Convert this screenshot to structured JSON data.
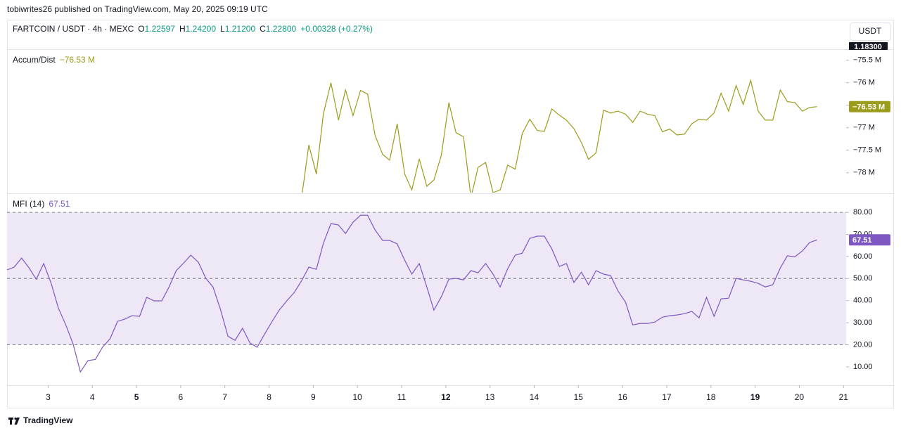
{
  "header": {
    "published": "tobiwrites26 published on TradingView.com, May 20, 2025 09:19 UTC",
    "symbol": "FARTCOIN / USDT · 4h · MEXC",
    "ohlc": [
      {
        "key": "O",
        "value": "1.22597"
      },
      {
        "key": "H",
        "value": "1.24200"
      },
      {
        "key": "L",
        "value": "1.21200"
      },
      {
        "key": "C",
        "value": "1.22800"
      }
    ],
    "change": "+0.00328 (+0.27%)",
    "currency": "USDT",
    "price_label": "1.18300"
  },
  "chart_data": [
    {
      "type": "line",
      "title": "Accum/Dist",
      "color": "#9c9c1c",
      "last_value": {
        "value": -76.53,
        "label": "−76.53 M"
      },
      "xlim": [
        2.07,
        21.06
      ],
      "ylim": [
        -78.44,
        -75.27
      ],
      "yticks": [
        {
          "value": -75.5,
          "label": "−75.5 M"
        },
        {
          "value": -76,
          "label": "−76 M"
        },
        {
          "value": -76.5,
          "label": "−76.5 M"
        },
        {
          "value": -77,
          "label": "−77 M"
        },
        {
          "value": -77.5,
          "label": "−77.5 M"
        },
        {
          "value": -78,
          "label": "−78 M"
        }
      ],
      "x": [
        8.73,
        8.9,
        9.07,
        9.23,
        9.4,
        9.57,
        9.73,
        9.9,
        10.07,
        10.23,
        10.4,
        10.57,
        10.73,
        10.9,
        11.07,
        11.23,
        11.4,
        11.57,
        11.73,
        11.9,
        12.07,
        12.23,
        12.4,
        12.57,
        12.73,
        12.9,
        13.07,
        13.23,
        13.4,
        13.57,
        13.73,
        13.9,
        14.07,
        14.23,
        14.4,
        14.57,
        14.73,
        14.9,
        15.07,
        15.23,
        15.4,
        15.57,
        15.73,
        15.9,
        16.07,
        16.23,
        16.4,
        16.57,
        16.73,
        16.9,
        17.07,
        17.23,
        17.4,
        17.57,
        17.73,
        17.9,
        18.07,
        18.23,
        18.4,
        18.57,
        18.73,
        18.9,
        19.07,
        19.23,
        19.4,
        19.57,
        19.73,
        19.9,
        20.07,
        20.23,
        20.4
      ],
      "values": [
        -78.6,
        -77.38,
        -78.03,
        -76.69,
        -76.0,
        -76.83,
        -76.16,
        -76.73,
        -76.17,
        -76.25,
        -77.17,
        -77.59,
        -77.72,
        -76.91,
        -78.03,
        -78.38,
        -77.69,
        -78.3,
        -78.16,
        -77.61,
        -76.44,
        -77.11,
        -77.2,
        -78.55,
        -77.88,
        -77.77,
        -78.44,
        -78.38,
        -77.83,
        -77.92,
        -77.13,
        -76.81,
        -77.06,
        -77.08,
        -76.58,
        -76.72,
        -76.83,
        -77.02,
        -77.33,
        -77.7,
        -77.56,
        -76.61,
        -76.67,
        -76.63,
        -76.7,
        -76.88,
        -76.63,
        -76.7,
        -76.73,
        -77.09,
        -77.03,
        -77.16,
        -77.14,
        -76.91,
        -76.81,
        -76.83,
        -76.67,
        -76.23,
        -76.63,
        -76.06,
        -76.48,
        -75.95,
        -76.63,
        -76.83,
        -76.83,
        -76.16,
        -76.42,
        -76.44,
        -76.63,
        -76.55,
        -76.53
      ]
    },
    {
      "type": "line",
      "title": "MFI (14)",
      "color": "#7e57c2",
      "last_value": 67.51,
      "bands": [
        20,
        50,
        80
      ],
      "band_fill": "#ede7f6",
      "xlim": [
        2.07,
        21.06
      ],
      "ylim": [
        1.7,
        88.3
      ],
      "xticks": [
        3,
        4,
        5,
        6,
        7,
        8,
        9,
        10,
        11,
        12,
        13,
        14,
        15,
        16,
        17,
        18,
        19,
        20,
        21
      ],
      "xticks_bold": [
        5,
        12,
        19
      ],
      "yticks": [
        {
          "value": 80,
          "label": "80.00"
        },
        {
          "value": 70,
          "label": "70.00"
        },
        {
          "value": 60,
          "label": "60.00"
        },
        {
          "value": 50,
          "label": "50.00"
        },
        {
          "value": 40,
          "label": "40.00"
        },
        {
          "value": 30,
          "label": "30.00"
        },
        {
          "value": 20,
          "label": "20.00"
        },
        {
          "value": 10,
          "label": "10.00"
        }
      ],
      "x": [
        2.07,
        2.23,
        2.4,
        2.57,
        2.73,
        2.9,
        3.07,
        3.23,
        3.4,
        3.57,
        3.73,
        3.9,
        4.07,
        4.23,
        4.4,
        4.57,
        4.73,
        4.9,
        5.07,
        5.23,
        5.4,
        5.57,
        5.73,
        5.9,
        6.07,
        6.23,
        6.4,
        6.57,
        6.73,
        6.9,
        7.07,
        7.23,
        7.4,
        7.57,
        7.73,
        7.9,
        8.07,
        8.23,
        8.4,
        8.57,
        8.73,
        8.9,
        9.07,
        9.23,
        9.4,
        9.57,
        9.73,
        9.9,
        10.07,
        10.23,
        10.4,
        10.57,
        10.73,
        10.9,
        11.07,
        11.23,
        11.4,
        11.57,
        11.73,
        11.9,
        12.07,
        12.23,
        12.4,
        12.57,
        12.73,
        12.9,
        13.07,
        13.23,
        13.4,
        13.57,
        13.73,
        13.9,
        14.07,
        14.23,
        14.4,
        14.57,
        14.73,
        14.9,
        15.07,
        15.23,
        15.4,
        15.57,
        15.73,
        15.9,
        16.07,
        16.23,
        16.4,
        16.57,
        16.73,
        16.9,
        17.07,
        17.23,
        17.4,
        17.57,
        17.73,
        17.9,
        18.07,
        18.23,
        18.4,
        18.57,
        18.73,
        18.9,
        19.07,
        19.23,
        19.4,
        19.57,
        19.73,
        19.9,
        20.07,
        20.23,
        20.4
      ],
      "values": [
        53.9,
        55.2,
        59.3,
        54.8,
        49.7,
        56.8,
        47.8,
        36.7,
        29.0,
        20.1,
        7.7,
        12.8,
        13.4,
        18.9,
        22.7,
        30.6,
        31.6,
        33.2,
        32.9,
        41.5,
        39.9,
        39.9,
        45.9,
        53.6,
        57.1,
        60.6,
        57.4,
        50.1,
        46.2,
        36.1,
        23.9,
        22.0,
        27.5,
        20.8,
        18.9,
        24.9,
        30.6,
        35.7,
        39.9,
        43.7,
        48.8,
        55.2,
        54.2,
        66.0,
        74.9,
        74.3,
        70.4,
        75.5,
        78.7,
        78.7,
        72.0,
        67.3,
        67.3,
        65.7,
        58.3,
        52.0,
        56.8,
        46.2,
        35.7,
        41.8,
        49.7,
        50.1,
        49.4,
        53.6,
        52.6,
        56.8,
        52.0,
        46.2,
        54.5,
        60.6,
        61.5,
        68.2,
        69.2,
        69.2,
        63.4,
        55.5,
        56.8,
        48.2,
        52.9,
        47.2,
        53.6,
        52.0,
        51.3,
        44.3,
        39.2,
        29.0,
        29.7,
        29.7,
        30.3,
        32.5,
        33.2,
        33.5,
        34.1,
        35.1,
        32.2,
        41.5,
        32.9,
        40.8,
        41.1,
        50.1,
        49.4,
        48.8,
        47.8,
        46.2,
        47.2,
        54.8,
        60.3,
        59.9,
        62.5,
        66.3,
        67.51
      ]
    }
  ],
  "footer": {
    "brand": "TradingView"
  }
}
